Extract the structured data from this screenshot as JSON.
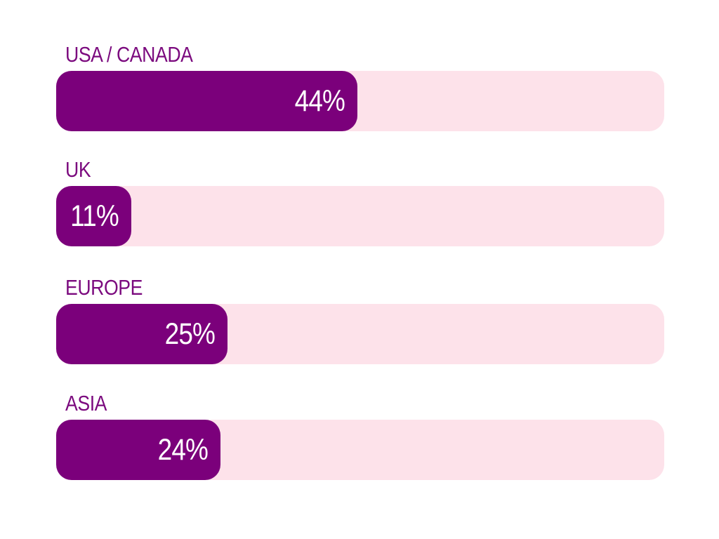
{
  "chart_data": {
    "type": "bar",
    "orientation": "horizontal",
    "categories": [
      "USA / CANADA",
      "UK",
      "EUROPE",
      "ASIA"
    ],
    "values": [
      44,
      11,
      25,
      24
    ],
    "value_labels": [
      "44%",
      "11%",
      "25%",
      "24%"
    ],
    "xlim": [
      0,
      100
    ],
    "title": "",
    "xlabel": "",
    "ylabel": "",
    "grid": false,
    "legend": "none",
    "colors": {
      "fill": "#7b007b",
      "track": "#fde2ea",
      "label": "#7b0a7e",
      "value_text": "#ffffff"
    }
  }
}
